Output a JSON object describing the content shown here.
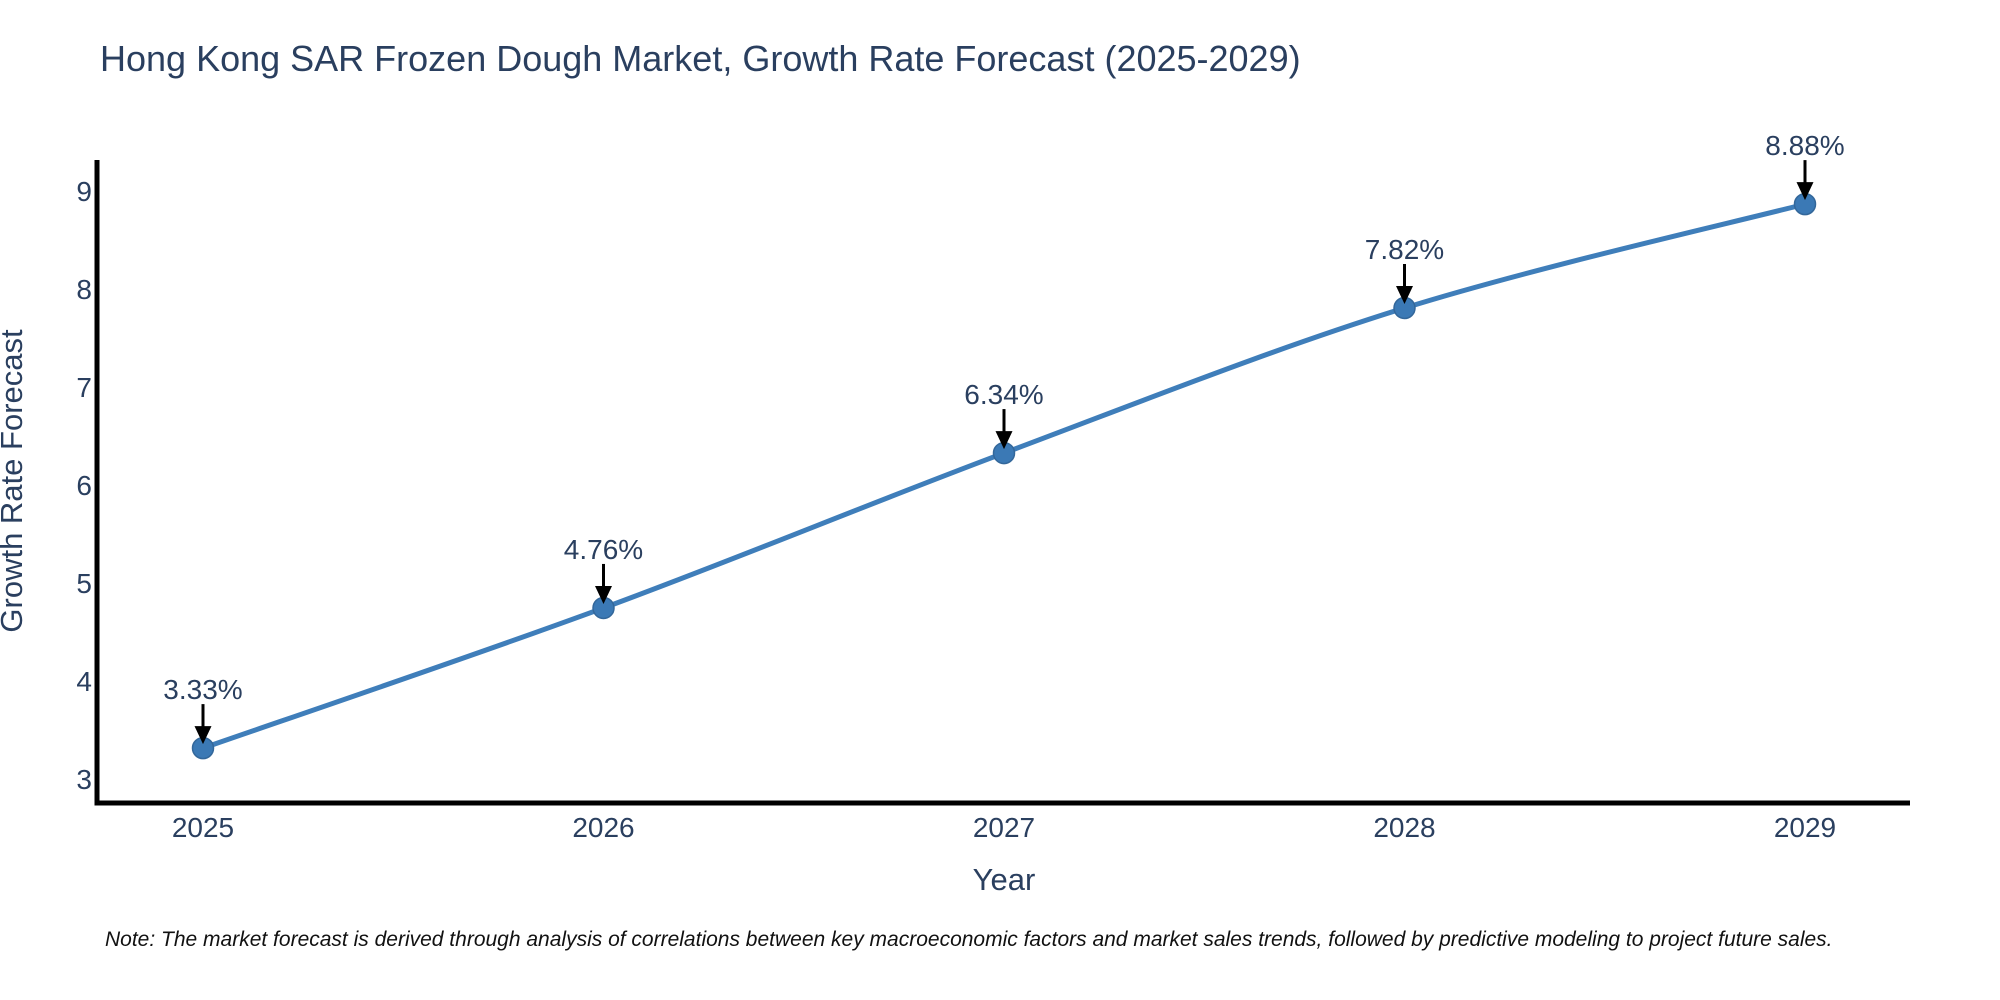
{
  "chart_data": {
    "type": "line",
    "title": "Hong Kong SAR Frozen Dough Market, Growth Rate Forecast (2025-2029)",
    "xlabel": "Year",
    "ylabel": "Growth Rate Forecast",
    "categories": [
      "2025",
      "2026",
      "2027",
      "2028",
      "2029"
    ],
    "values": [
      3.33,
      4.76,
      6.34,
      7.82,
      8.88
    ],
    "point_labels": [
      "3.33%",
      "4.76%",
      "6.34%",
      "7.82%",
      "8.88%"
    ],
    "yticks": [
      3,
      4,
      5,
      6,
      7,
      8,
      9
    ],
    "ylim": [
      2.77,
      9.33
    ],
    "grid": false,
    "legend_position": "none",
    "line_color": "#3f7eba",
    "marker_color": "#3b79b5",
    "marker_edge_color": "#33679a",
    "axis_color": "#000000",
    "text_color": "#2a3f5f",
    "annotation_arrow_color": "#000000",
    "background_color": "#ffffff"
  },
  "footnote": {
    "text": "Note: The market forecast is derived through analysis of correlations between key macroeconomic factors and market sales trends, followed by predictive modeling to project future sales."
  }
}
